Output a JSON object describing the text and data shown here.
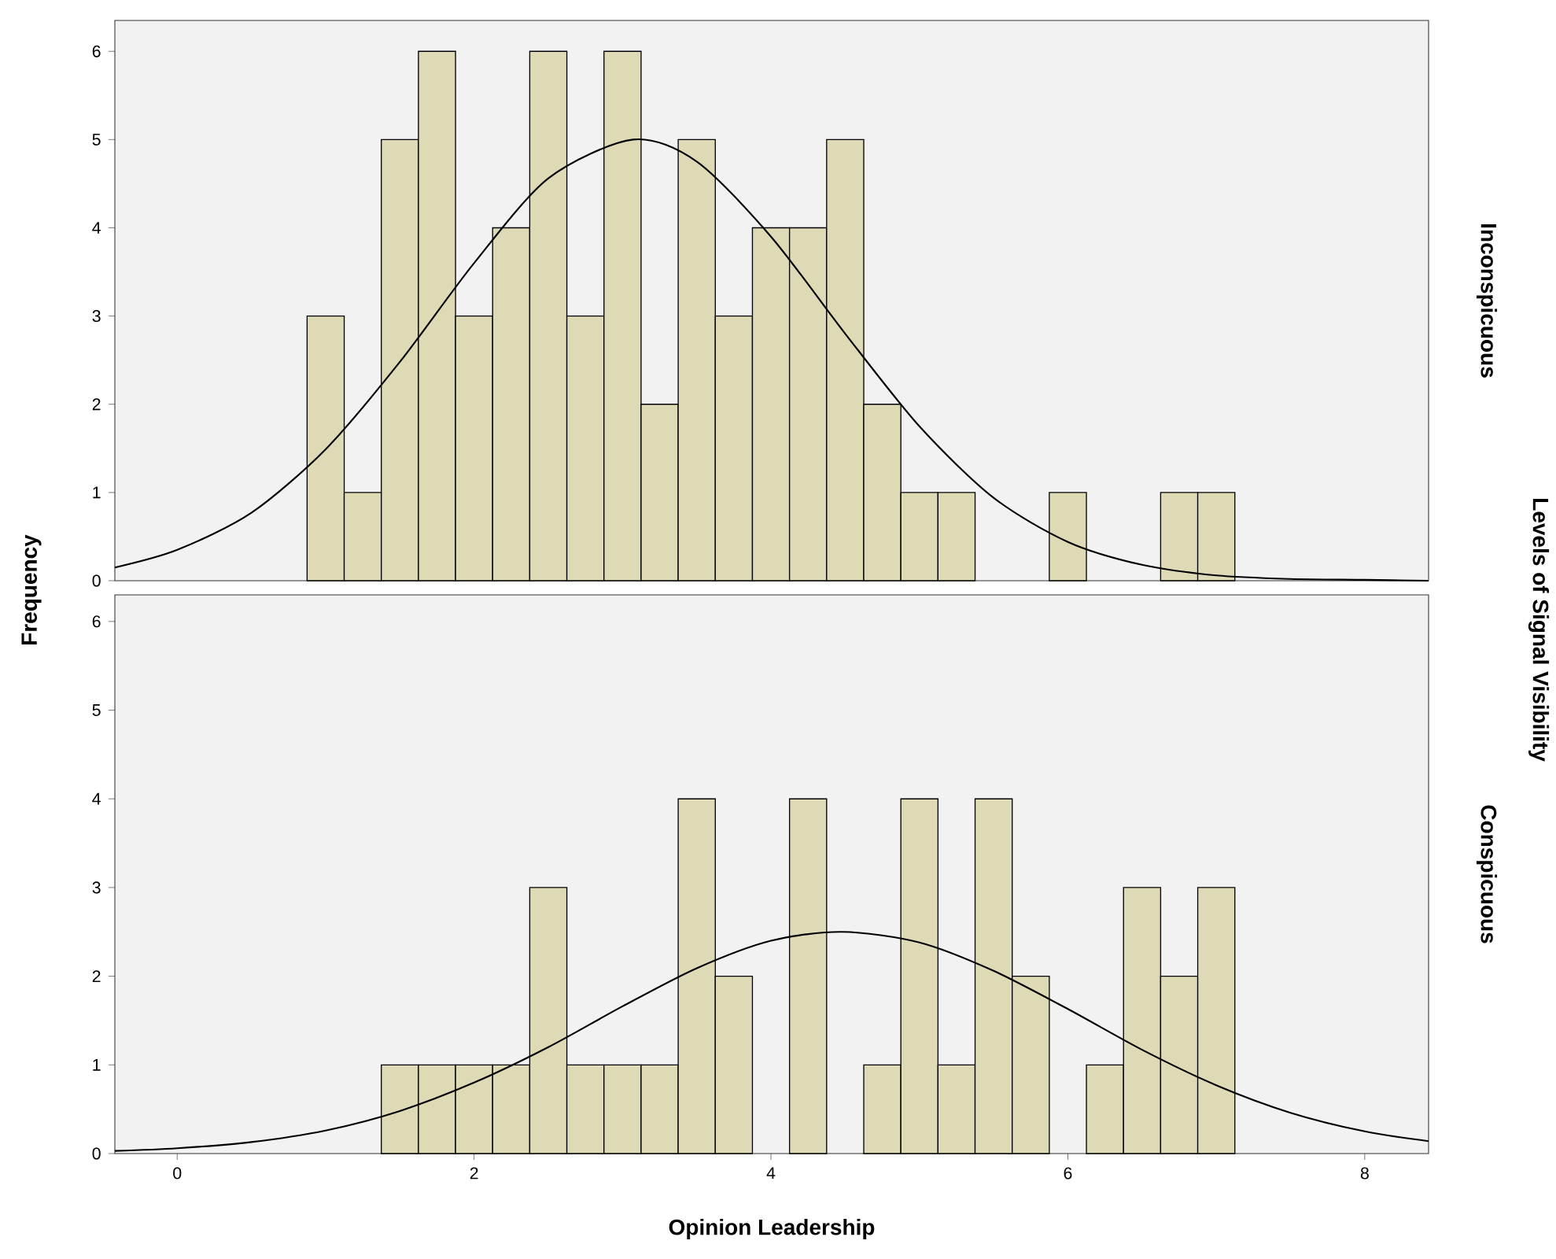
{
  "chart_data": [
    {
      "type": "histogram",
      "y2label": "Inconspicuous",
      "ylabel": "Frequency",
      "annotations": [
        "Levels of Signal Visibility"
      ],
      "xlim": [
        -0.42,
        8.43
      ],
      "ylim": [
        0,
        6.35
      ],
      "yticks": [
        0,
        1,
        2,
        3,
        4,
        5,
        6
      ],
      "tick_labels": "y",
      "series": [
        {
          "color": "#dedab6",
          "bins": [
            0.875,
            1.125,
            1.375,
            1.625,
            1.875,
            2.125,
            2.375,
            2.625,
            2.875,
            3.125,
            3.375,
            3.625,
            3.875,
            4.125,
            4.375,
            4.625,
            4.875,
            5.125,
            5.375,
            5.625,
            5.875,
            6.125,
            6.375,
            6.625,
            6.875,
            7.125
          ],
          "values": [
            3,
            1,
            5,
            6,
            3,
            4,
            6,
            3,
            6,
            2,
            5,
            3,
            4,
            4,
            5,
            2,
            1,
            1,
            0,
            0,
            1,
            0,
            0,
            1,
            1
          ]
        },
        {
          "type": "line",
          "color": "#000000",
          "x": [
            -0.42,
            0,
            0.5,
            1,
            1.5,
            2,
            2.5,
            3.07,
            3.5,
            4,
            4.5,
            5,
            5.5,
            6,
            6.5,
            7,
            7.5,
            8,
            8.43
          ],
          "values": [
            0.15,
            0.35,
            0.77,
            1.49,
            2.48,
            3.6,
            4.56,
            5,
            4.75,
            3.9,
            2.8,
            1.75,
            0.94,
            0.44,
            0.18,
            0.06,
            0.02,
            0.01,
            0
          ]
        }
      ]
    },
    {
      "type": "histogram",
      "y2label": "Conspicuous",
      "xlabel": "Opinion Leadership",
      "xlim": [
        -0.42,
        8.43
      ],
      "ylim": [
        0,
        6.3
      ],
      "xticks": [
        0,
        2,
        4,
        6,
        8
      ],
      "yticks": [
        0,
        1,
        2,
        3,
        4,
        5,
        6
      ],
      "series": [
        {
          "color": "#dedab6",
          "bins": [
            0.875,
            1.125,
            1.375,
            1.625,
            1.875,
            2.125,
            2.375,
            2.625,
            2.875,
            3.125,
            3.375,
            3.625,
            3.875,
            4.125,
            4.375,
            4.625,
            4.875,
            5.125,
            5.375,
            5.625,
            5.875,
            6.125,
            6.375,
            6.625,
            6.875,
            7.125
          ],
          "values": [
            0,
            0,
            1,
            1,
            1,
            1,
            3,
            1,
            1,
            1,
            4,
            2,
            0,
            4,
            0,
            1,
            4,
            1,
            4,
            2,
            0,
            1,
            3,
            2,
            3
          ]
        },
        {
          "type": "line",
          "color": "#000000",
          "x": [
            -0.42,
            0,
            0.5,
            1,
            1.5,
            2,
            2.5,
            3,
            3.5,
            4,
            4.48,
            5,
            5.5,
            6,
            6.5,
            7,
            7.5,
            8,
            8.43
          ],
          "values": [
            0.03,
            0.06,
            0.13,
            0.26,
            0.48,
            0.8,
            1.2,
            1.66,
            2.09,
            2.4,
            2.5,
            2.38,
            2.06,
            1.63,
            1.17,
            0.77,
            0.46,
            0.25,
            0.14
          ]
        }
      ]
    }
  ]
}
